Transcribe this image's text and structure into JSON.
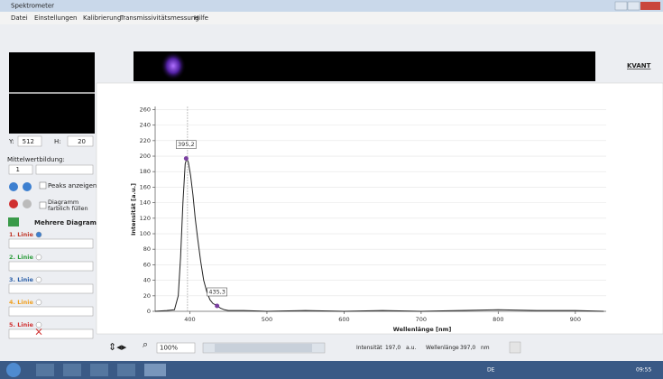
{
  "window": {
    "title": "Spektrometer",
    "menu": [
      "Datei",
      "Einstellungen",
      "Kalibrierung",
      "Transmissivitätsmessung",
      "Hilfe"
    ]
  },
  "left_panel": {
    "y_label": "Y:",
    "y_value": "512",
    "h_label": "H:",
    "h_value": "20",
    "averaging_label": "Mittelwertbildung:",
    "averaging_value": "1",
    "peaks_checkbox": "Peaks anzeigen",
    "fill_checkbox": "Diagramm farblich füllen",
    "multi_title": "Mehrere Diagramme",
    "lines": [
      "1. Linie",
      "2. Linie",
      "3. Linie",
      "4. Linie",
      "5. Linie"
    ],
    "line_colors": [
      "#c0392b",
      "#2e9e3e",
      "#2a5fa8",
      "#f0a020",
      "#d03030"
    ]
  },
  "logo": "KVANT",
  "chart_data": {
    "type": "line",
    "x_label": "Wellenlänge [nm]",
    "y_label": "Intensität [a.u.]",
    "x": [
      355,
      370,
      380,
      385,
      388,
      391,
      394,
      396,
      398,
      401,
      404,
      407,
      410,
      414,
      418,
      422,
      426,
      430,
      434,
      437,
      440,
      445,
      450,
      470,
      500,
      550,
      600,
      650,
      700,
      750,
      800,
      850,
      900,
      937
    ],
    "values": [
      0,
      1,
      2,
      20,
      70,
      140,
      190,
      197,
      192,
      175,
      150,
      120,
      95,
      65,
      40,
      25,
      15,
      10,
      8,
      6,
      4,
      2,
      1,
      1,
      0,
      1,
      0,
      1,
      0,
      1,
      2,
      1,
      1,
      0
    ],
    "color": "#222222",
    "xlim": [
      355,
      940
    ],
    "ylim": [
      0,
      264
    ],
    "xticks": [
      400,
      500,
      600,
      700,
      800,
      900
    ],
    "yticks": [
      0,
      20,
      40,
      60,
      80,
      100,
      120,
      140,
      160,
      180,
      200,
      220,
      240,
      260
    ],
    "grid": true,
    "cursor_x": 397,
    "peaks": {
      "x": [
        395.2,
        435.3
      ],
      "values": [
        197,
        7
      ],
      "value_labels": [
        "395,2",
        "435,3"
      ],
      "color": "#7a3fa0"
    }
  },
  "toolbar": {
    "zoom": "100%",
    "intensity_label": "Intensität",
    "intensity_value": "197,0",
    "intensity_unit": "a.u.",
    "wavelength_label": "Wellenlänge",
    "wavelength_value": "397,0",
    "wavelength_unit": "nm"
  },
  "taskbar": {
    "language": "DE",
    "clock": "09:55"
  }
}
